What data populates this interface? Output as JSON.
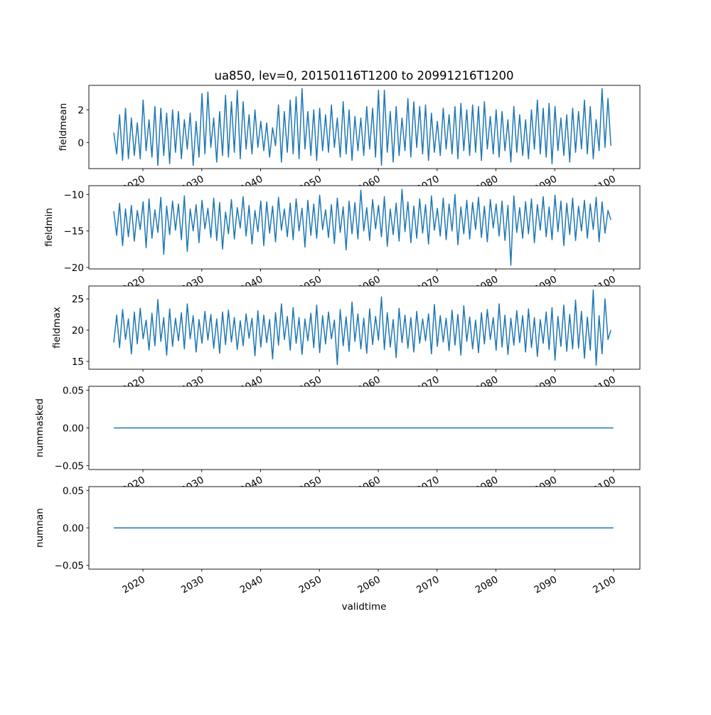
{
  "chart_data": {
    "type": "line",
    "title": "ua850, lev=0, 20150116T1200 to 20991216T1200",
    "xlabel": "validtime",
    "x_ticks": [
      2020,
      2030,
      2040,
      2050,
      2060,
      2070,
      2080,
      2090,
      2100
    ],
    "x_tick_labels": [
      "2020",
      "2030",
      "2040",
      "2050",
      "2060",
      "2070",
      "2080",
      "2090",
      "2100"
    ],
    "xlim": [
      2010.0,
      2104.5
    ],
    "line_color": "#1f77b4",
    "panels": [
      {
        "ylabel": "fieldmean",
        "ylim": [
          -1.6,
          3.5
        ],
        "y_ticks": [
          0,
          2
        ],
        "y_tick_labels": [
          "0",
          "2"
        ],
        "x_start": 2015.04,
        "x_step": 0.5,
        "values": [
          0.6,
          -0.7,
          1.7,
          -1.1,
          2.1,
          -1.0,
          1.5,
          -0.8,
          1.2,
          -1.0,
          2.6,
          -0.5,
          1.4,
          -0.9,
          2.2,
          -1.4,
          2.1,
          -0.8,
          1.8,
          -1.3,
          2.0,
          -0.6,
          1.9,
          -1.0,
          1.4,
          -0.4,
          1.8,
          -1.4,
          1.3,
          -0.9,
          3.0,
          -0.7,
          3.1,
          -0.3,
          1.5,
          -1.2,
          1.9,
          -0.8,
          2.9,
          -0.9,
          2.5,
          -0.6,
          3.2,
          -1.0,
          2.5,
          -0.4,
          1.7,
          -0.7,
          2.0,
          -0.3,
          1.3,
          -0.5,
          1.2,
          -0.9,
          0.9,
          -0.2,
          2.3,
          -1.2,
          1.9,
          -0.6,
          2.6,
          -0.7,
          2.8,
          -1.0,
          3.3,
          -0.4,
          1.9,
          -0.8,
          2.0,
          -1.1,
          2.1,
          -0.5,
          1.7,
          -0.6,
          2.3,
          -0.3,
          1.5,
          -0.9,
          2.5,
          -0.7,
          2.0,
          -1.1,
          1.6,
          -0.5,
          1.5,
          -0.8,
          2.2,
          -0.4,
          2.1,
          -0.9,
          3.2,
          -1.4,
          3.2,
          -0.6,
          1.9,
          -1.2,
          2.2,
          -0.8,
          1.5,
          -0.5,
          2.7,
          -0.9,
          2.5,
          -0.3,
          2.2,
          -0.7,
          2.3,
          -1.1,
          1.8,
          -0.6,
          1.3,
          -0.8,
          2.1,
          -0.4,
          1.7,
          -0.7,
          2.2,
          -1.0,
          2.4,
          -0.5,
          2.0,
          -0.8,
          2.3,
          -0.6,
          2.2,
          -1.1,
          2.5,
          -0.4,
          1.6,
          -0.7,
          2.0,
          -0.9,
          1.9,
          -0.5,
          1.4,
          -1.2,
          2.2,
          -0.6,
          1.7,
          -0.8,
          1.4,
          -1.0,
          2.0,
          -0.4,
          2.6,
          -0.7,
          2.1,
          -0.9,
          2.4,
          -1.3,
          2.2,
          -0.5,
          1.5,
          -0.8,
          1.7,
          -1.2,
          2.1,
          -0.6,
          1.9,
          -0.4,
          2.6,
          -0.7,
          2.2,
          -1.0,
          1.4,
          -0.5,
          3.3,
          -0.3,
          2.7,
          -0.2
        ]
      },
      {
        "ylabel": "fieldmin",
        "ylim": [
          -20.2,
          -8.8
        ],
        "y_ticks": [
          -20,
          -15,
          -10
        ],
        "y_tick_labels": [
          "−20",
          "−15",
          "−10"
        ],
        "x_start": 2015.04,
        "x_step": 0.5,
        "values": [
          -12.3,
          -15.6,
          -11.2,
          -17.0,
          -12.0,
          -15.8,
          -11.5,
          -16.4,
          -12.2,
          -14.8,
          -11.0,
          -17.3,
          -10.6,
          -16.0,
          -12.1,
          -15.2,
          -10.4,
          -18.2,
          -11.6,
          -15.5,
          -10.9,
          -14.9,
          -11.3,
          -16.2,
          -10.2,
          -17.8,
          -12.0,
          -15.0,
          -11.4,
          -16.6,
          -10.8,
          -14.7,
          -11.9,
          -15.9,
          -10.5,
          -16.3,
          -11.1,
          -17.5,
          -12.4,
          -15.4,
          -10.7,
          -16.1,
          -11.8,
          -14.6,
          -10.3,
          -15.7,
          -11.5,
          -16.8,
          -12.2,
          -15.1,
          -10.9,
          -17.0,
          -11.0,
          -15.3,
          -11.6,
          -16.5,
          -10.4,
          -14.9,
          -12.0,
          -15.8,
          -11.2,
          -16.2,
          -10.6,
          -15.0,
          -11.9,
          -17.2,
          -10.8,
          -15.6,
          -11.3,
          -16.0,
          -10.1,
          -14.8,
          -12.1,
          -15.9,
          -11.4,
          -16.7,
          -10.5,
          -15.2,
          -11.7,
          -17.6,
          -10.9,
          -15.4,
          -11.1,
          -16.1,
          -9.4,
          -15.0,
          -11.8,
          -16.3,
          -10.7,
          -14.7,
          -11.5,
          -15.8,
          -10.3,
          -17.1,
          -12.0,
          -15.5,
          -11.2,
          -16.4,
          -9.3,
          -15.1,
          -11.0,
          -16.6,
          -11.6,
          -16.0,
          -10.6,
          -15.3,
          -11.4,
          -16.8,
          -10.2,
          -14.9,
          -11.9,
          -15.7,
          -10.5,
          -16.2,
          -11.3,
          -15.0,
          -10.0,
          -16.9,
          -11.7,
          -15.4,
          -10.8,
          -16.1,
          -11.1,
          -14.8,
          -10.4,
          -15.9,
          -11.6,
          -16.5,
          -10.7,
          -14.6,
          -11.3,
          -15.7,
          -10.9,
          -16.3,
          -11.5,
          -19.7,
          -10.2,
          -15.2,
          -11.8,
          -16.0,
          -11.0,
          -15.4,
          -10.6,
          -16.6,
          -11.4,
          -14.9,
          -10.3,
          -15.8,
          -11.7,
          -16.2,
          -10.1,
          -15.1,
          -10.9,
          -17.0,
          -11.2,
          -15.5,
          -10.5,
          -16.3,
          -11.6,
          -15.0,
          -10.8,
          -16.0,
          -11.3,
          -14.8,
          -10.4,
          -16.5,
          -11.0,
          -15.3,
          -12.2,
          -13.5
        ]
      },
      {
        "ylabel": "fieldmax",
        "ylim": [
          13.75,
          27.05
        ],
        "y_ticks": [
          15,
          20,
          25
        ],
        "y_tick_labels": [
          "15",
          "20",
          "25"
        ],
        "x_start": 2015.04,
        "x_step": 0.5,
        "values": [
          18.0,
          22.4,
          17.2,
          23.3,
          18.5,
          21.8,
          16.2,
          22.9,
          17.8,
          23.5,
          18.6,
          21.6,
          16.8,
          22.7,
          17.5,
          24.9,
          18.2,
          22.0,
          16.0,
          23.4,
          17.4,
          21.9,
          18.3,
          22.8,
          17.0,
          24.2,
          18.6,
          22.3,
          16.5,
          21.7,
          17.9,
          23.0,
          18.4,
          22.5,
          17.1,
          21.8,
          16.3,
          22.9,
          17.7,
          23.2,
          18.1,
          22.0,
          16.9,
          21.5,
          17.5,
          22.6,
          18.7,
          21.9,
          15.9,
          23.1,
          17.3,
          22.4,
          18.0,
          21.7,
          15.4,
          22.8,
          17.6,
          24.2,
          18.5,
          22.2,
          16.8,
          23.6,
          17.9,
          22.0,
          16.1,
          21.8,
          18.3,
          22.7,
          17.2,
          24.0,
          16.4,
          22.3,
          17.8,
          22.9,
          18.6,
          21.6,
          14.5,
          23.3,
          17.5,
          22.1,
          16.6,
          24.5,
          18.2,
          22.6,
          17.0,
          21.9,
          16.3,
          23.4,
          17.7,
          22.2,
          18.4,
          25.3,
          16.9,
          22.8,
          17.3,
          21.7,
          15.6,
          23.5,
          18.0,
          22.4,
          17.1,
          22.0,
          16.5,
          23.0,
          17.9,
          21.8,
          18.3,
          22.6,
          16.2,
          24.1,
          17.4,
          22.3,
          18.1,
          21.9,
          16.7,
          23.2,
          17.6,
          22.5,
          16.0,
          23.9,
          18.2,
          22.1,
          17.0,
          21.6,
          16.4,
          22.8,
          17.8,
          23.3,
          18.5,
          22.0,
          16.8,
          24.2,
          17.3,
          22.4,
          16.1,
          21.9,
          17.6,
          23.1,
          18.0,
          22.3,
          16.5,
          23.4,
          17.2,
          22.0,
          15.8,
          21.7,
          17.9,
          22.9,
          16.9,
          23.6,
          15.2,
          22.2,
          17.4,
          24.0,
          16.6,
          22.5,
          17.0,
          24.8,
          17.1,
          23.0,
          15.5,
          22.1,
          16.8,
          26.4,
          14.4,
          22.3,
          16.2,
          25.0,
          18.5,
          20.0
        ]
      },
      {
        "ylabel": "nummasked",
        "ylim": [
          -0.055,
          0.055
        ],
        "y_ticks": [
          -0.05,
          0.0,
          0.05
        ],
        "y_tick_labels": [
          "−0.05",
          "0.00",
          "0.05"
        ],
        "x": [
          2015.04,
          2099.96
        ],
        "values": [
          0,
          0
        ]
      },
      {
        "ylabel": "numnan",
        "ylim": [
          -0.055,
          0.055
        ],
        "y_ticks": [
          -0.05,
          0.0,
          0.05
        ],
        "y_tick_labels": [
          "−0.05",
          "0.00",
          "0.05"
        ],
        "x": [
          2015.04,
          2099.96
        ],
        "values": [
          0,
          0
        ]
      }
    ]
  }
}
